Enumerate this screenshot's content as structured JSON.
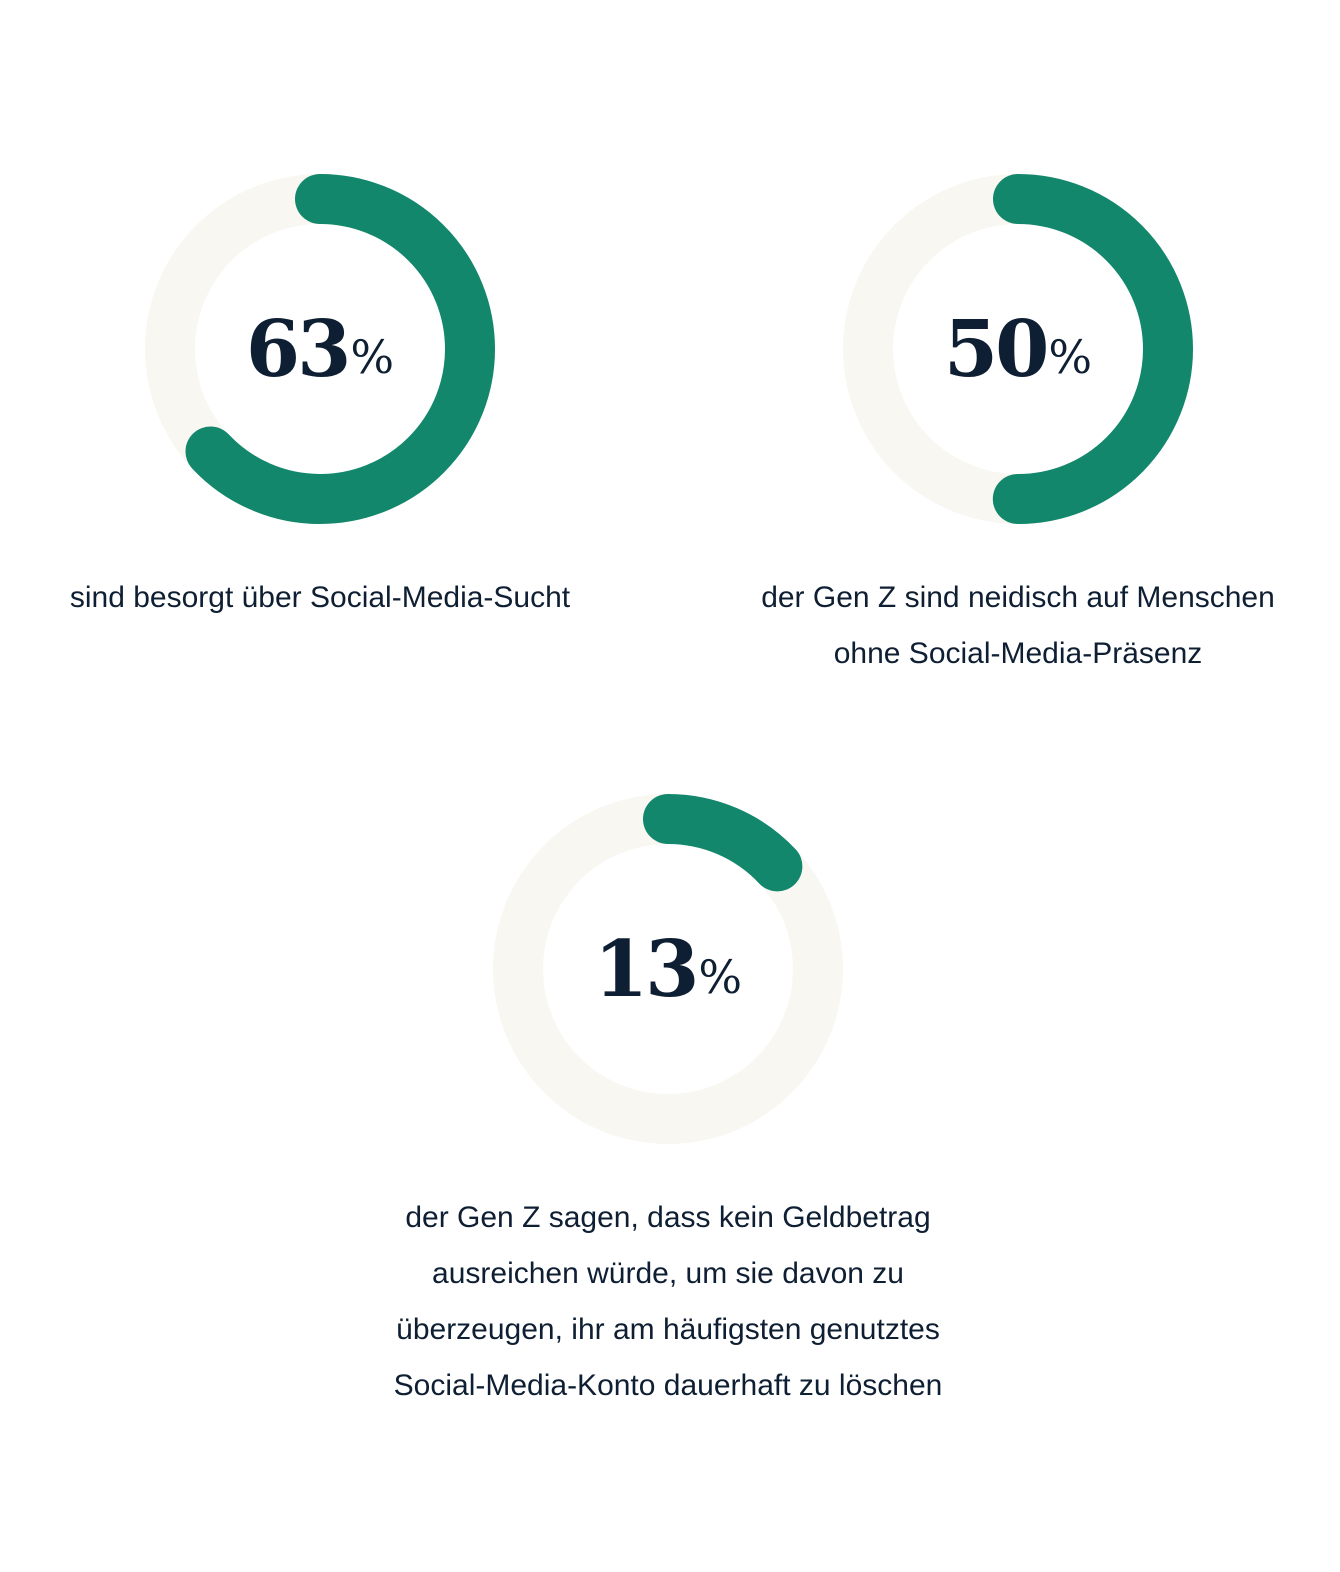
{
  "colors": {
    "accent": "#12876c",
    "track": "#f8f7f2",
    "text": "#0f1f33"
  },
  "chart_data": [
    {
      "type": "pie",
      "variant": "donut",
      "value": 63,
      "unit": "%",
      "label": "sind besorgt über Social-Media-Sucht"
    },
    {
      "type": "pie",
      "variant": "donut",
      "value": 50,
      "unit": "%",
      "label": "der Gen Z sind neidisch auf Menschen ohne Social-Media-Präsenz"
    },
    {
      "type": "pie",
      "variant": "donut",
      "value": 13,
      "unit": "%",
      "label": "der Gen Z sagen, dass kein Geldbetrag ausreichen würde, um sie davon zu überzeugen, ihr am häufigsten genutztes Social-Media-Konto dauerhaft zu löschen"
    }
  ]
}
